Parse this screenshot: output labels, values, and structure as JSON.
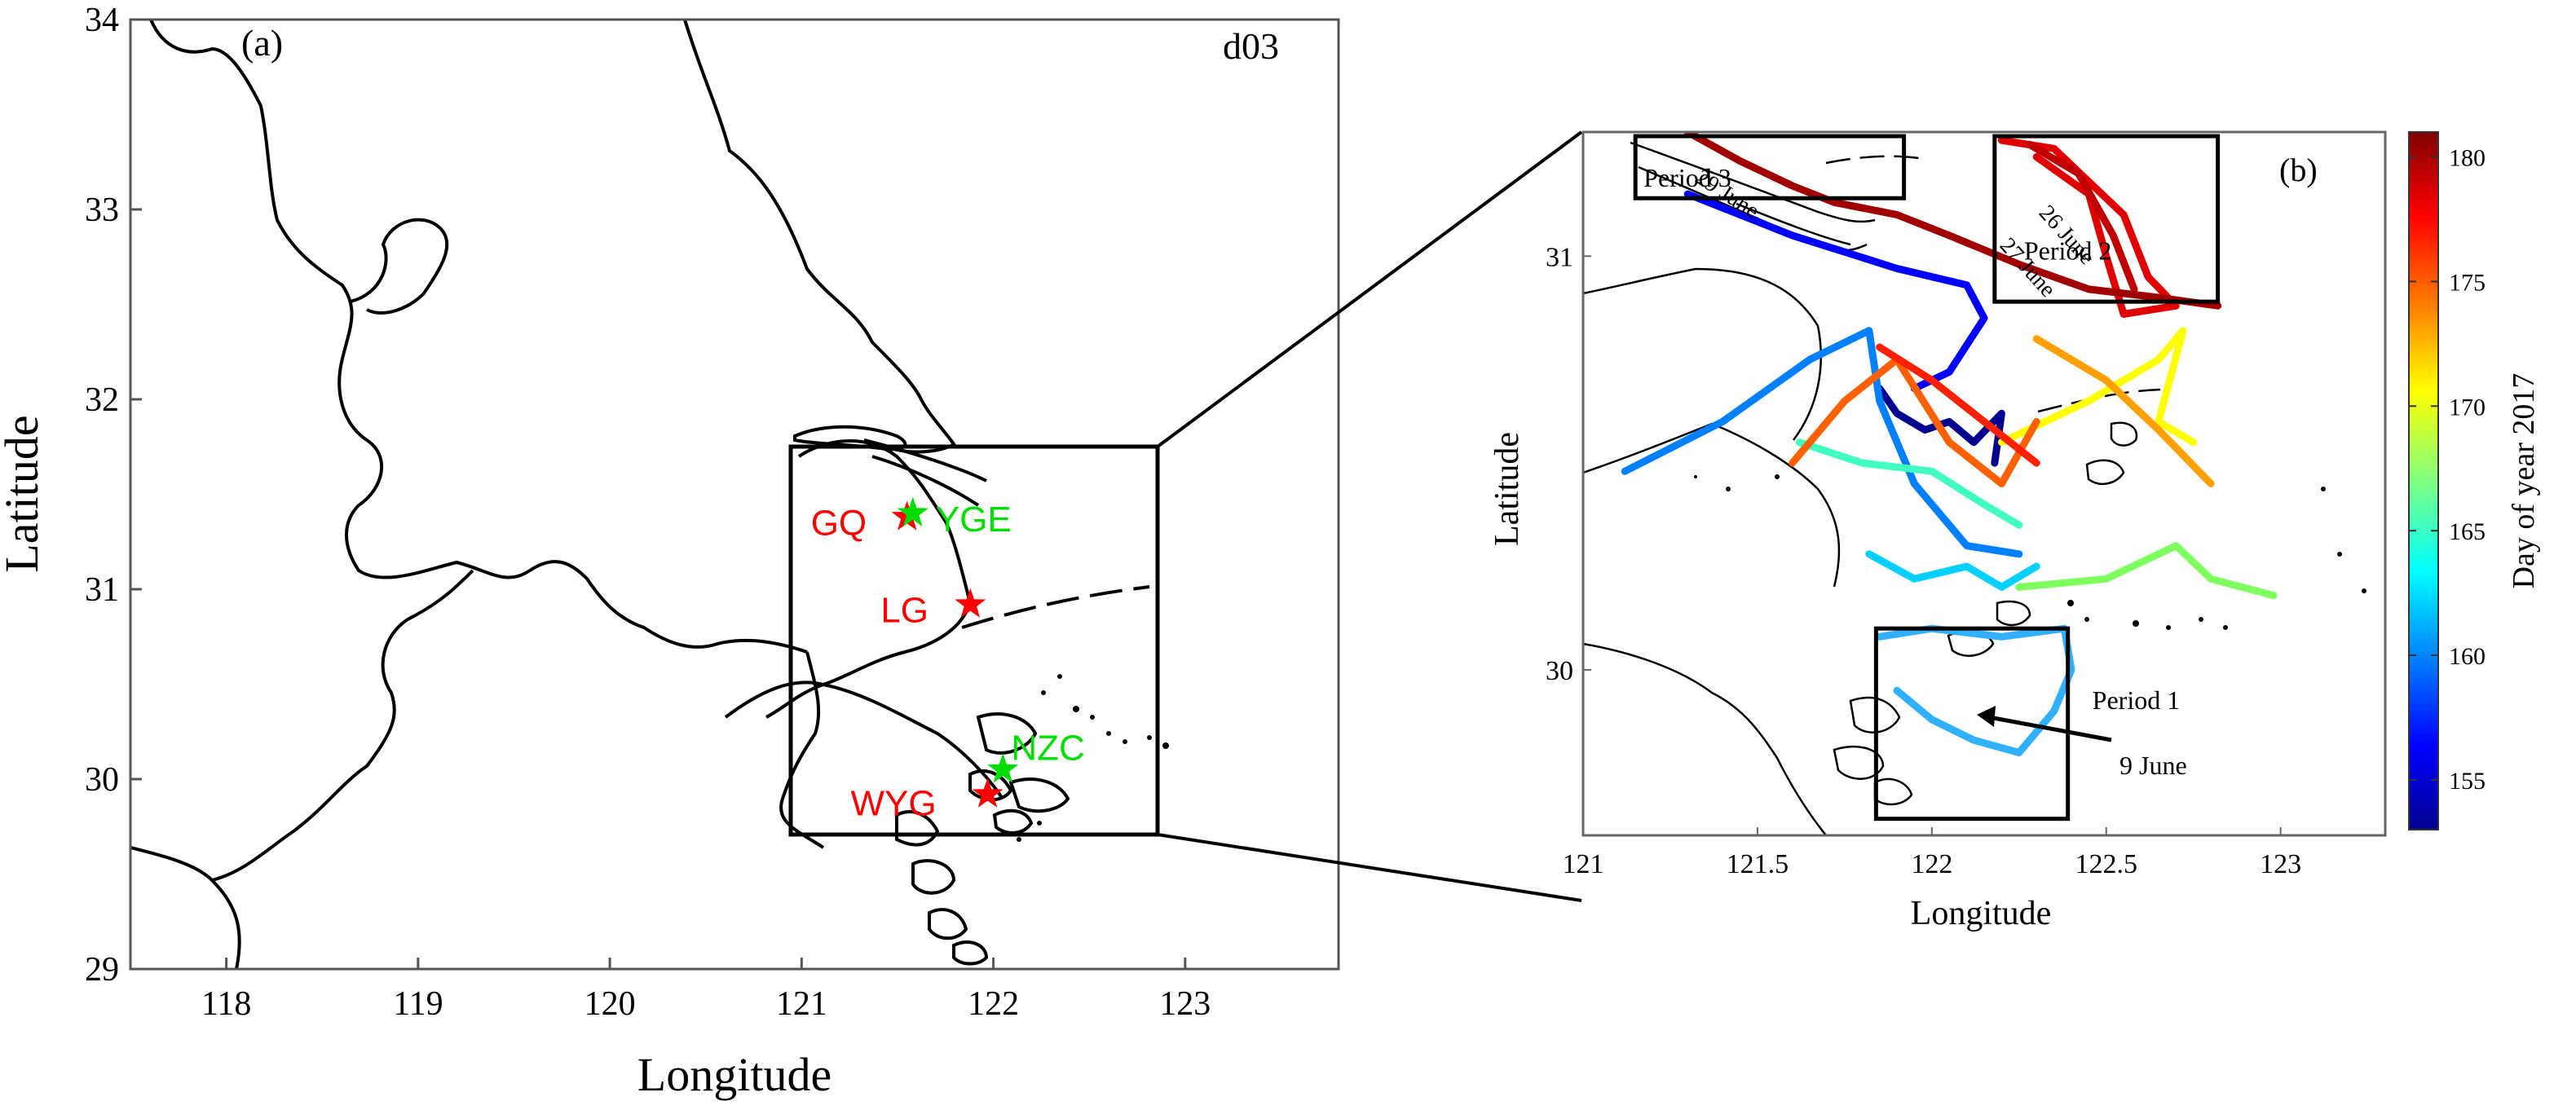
{
  "panel_a": {
    "label": "(a)",
    "domain_tag": "d03",
    "xlabel": "Longitude",
    "ylabel": "Latitude",
    "xlim": [
      117.5,
      123.8
    ],
    "ylim": [
      29,
      34
    ],
    "xticks": [
      "118",
      "119",
      "120",
      "121",
      "122",
      "123"
    ],
    "yticks": [
      "29",
      "30",
      "31",
      "32",
      "33",
      "34"
    ],
    "stations": [
      {
        "name": "GQ",
        "lon": 121.55,
        "lat": 31.38,
        "color": "#ff0000",
        "marker": "star"
      },
      {
        "name": "YGE",
        "lon": 121.58,
        "lat": 31.4,
        "color": "#00dd00",
        "marker": "star"
      },
      {
        "name": "LG",
        "lon": 121.88,
        "lat": 30.92,
        "color": "#ff0000",
        "marker": "star"
      },
      {
        "name": "NZC",
        "lon": 122.05,
        "lat": 30.05,
        "color": "#00dd00",
        "marker": "star"
      },
      {
        "name": "WYG",
        "lon": 121.97,
        "lat": 29.92,
        "color": "#ff0000",
        "marker": "star"
      }
    ],
    "zoom_box": {
      "lon": [
        120.95,
        122.85
      ],
      "lat": [
        29.7,
        31.75
      ]
    }
  },
  "panel_b": {
    "label": "(b)",
    "xlabel": "Longitude",
    "ylabel": "Latitude",
    "xlim": [
      121,
      123.3
    ],
    "ylim": [
      29.6,
      31.3
    ],
    "xticks": [
      "121",
      "121.5",
      "122",
      "122.5",
      "123"
    ],
    "yticks": [
      "30",
      "31"
    ],
    "period_boxes": [
      {
        "label": "Period 3",
        "lon": [
          121.15,
          121.92
        ],
        "lat": [
          31.14,
          31.29
        ]
      },
      {
        "label": "Period 2",
        "lon": [
          122.18,
          122.82
        ],
        "lat": [
          30.89,
          31.29
        ]
      },
      {
        "label": "Period 1",
        "lon": [
          121.84,
          122.39
        ],
        "lat": [
          29.64,
          30.1
        ]
      }
    ],
    "annotations": [
      "29 June",
      "26 June",
      "27 June",
      "9 June"
    ],
    "colorbar": {
      "label": "Day of year 2017",
      "ticks": [
        "155",
        "160",
        "165",
        "170",
        "175",
        "180"
      ],
      "range": [
        153,
        181
      ],
      "colors": [
        "#00008f",
        "#0000ff",
        "#0080ff",
        "#00ffff",
        "#80ff80",
        "#ffff00",
        "#ff8000",
        "#ff0000",
        "#800000"
      ]
    }
  },
  "chart_data": {
    "type": "scatter",
    "description_panels": [
      "(a)",
      "(b)"
    ],
    "stations": [
      {
        "name": "GQ",
        "lon": 121.55,
        "lat": 31.38
      },
      {
        "name": "YGE",
        "lon": 121.58,
        "lat": 31.4
      },
      {
        "name": "LG",
        "lon": 121.88,
        "lat": 30.92
      },
      {
        "name": "NZC",
        "lon": 122.05,
        "lat": 30.05
      },
      {
        "name": "WYG",
        "lon": 121.97,
        "lat": 29.92
      }
    ],
    "tracks": [
      {
        "day": 154,
        "color": "#00008f",
        "points": [
          [
            121.85,
            30.68
          ],
          [
            121.9,
            30.62
          ],
          [
            121.98,
            30.58
          ],
          [
            122.05,
            30.6
          ],
          [
            122.12,
            30.55
          ],
          [
            122.2,
            30.62
          ],
          [
            122.18,
            30.5
          ]
        ]
      },
      {
        "day": 155,
        "color": "#0000ff",
        "points": [
          [
            121.3,
            31.15
          ],
          [
            121.6,
            31.05
          ],
          [
            121.9,
            30.97
          ],
          [
            122.1,
            30.93
          ],
          [
            122.15,
            30.85
          ],
          [
            122.05,
            30.72
          ],
          [
            121.95,
            30.68
          ]
        ]
      },
      {
        "day": 158,
        "color": "#0080ff",
        "points": [
          [
            121.12,
            30.48
          ],
          [
            121.4,
            30.6
          ],
          [
            121.65,
            30.75
          ],
          [
            121.82,
            30.82
          ],
          [
            121.85,
            30.65
          ],
          [
            121.95,
            30.45
          ],
          [
            122.1,
            30.3
          ],
          [
            122.25,
            30.28
          ]
        ]
      },
      {
        "day": 160,
        "color": "#30b0ff",
        "points": [
          [
            121.85,
            30.08
          ],
          [
            122.0,
            30.1
          ],
          [
            122.2,
            30.08
          ],
          [
            122.38,
            30.1
          ],
          [
            122.4,
            30.0
          ],
          [
            122.35,
            29.9
          ],
          [
            122.25,
            29.8
          ],
          [
            122.12,
            29.83
          ],
          [
            122.0,
            29.88
          ],
          [
            121.9,
            29.95
          ]
        ]
      },
      {
        "day": 162,
        "color": "#00d0ff",
        "points": [
          [
            121.82,
            30.28
          ],
          [
            121.95,
            30.22
          ],
          [
            122.1,
            30.25
          ],
          [
            122.2,
            30.2
          ],
          [
            122.3,
            30.25
          ]
        ]
      },
      {
        "day": 165,
        "color": "#40ffc0",
        "points": [
          [
            121.62,
            30.55
          ],
          [
            121.8,
            30.5
          ],
          [
            122.0,
            30.48
          ],
          [
            122.15,
            30.4
          ],
          [
            122.25,
            30.35
          ]
        ]
      },
      {
        "day": 167,
        "color": "#80ff60",
        "points": [
          [
            122.25,
            30.2
          ],
          [
            122.5,
            30.22
          ],
          [
            122.7,
            30.3
          ],
          [
            122.8,
            30.22
          ],
          [
            122.98,
            30.18
          ]
        ]
      },
      {
        "day": 170,
        "color": "#ffff00",
        "points": [
          [
            122.2,
            30.55
          ],
          [
            122.45,
            30.65
          ],
          [
            122.65,
            30.75
          ],
          [
            122.72,
            30.82
          ],
          [
            122.65,
            30.6
          ],
          [
            122.75,
            30.55
          ]
        ]
      },
      {
        "day": 173,
        "color": "#ffa000",
        "points": [
          [
            122.3,
            30.8
          ],
          [
            122.5,
            30.7
          ],
          [
            122.65,
            30.58
          ],
          [
            122.8,
            30.45
          ]
        ]
      },
      {
        "day": 175,
        "color": "#ff6000",
        "points": [
          [
            121.6,
            30.5
          ],
          [
            121.75,
            30.65
          ],
          [
            121.9,
            30.75
          ],
          [
            122.05,
            30.55
          ],
          [
            122.2,
            30.45
          ],
          [
            122.3,
            30.6
          ]
        ]
      },
      {
        "day": 177,
        "color": "#ff2000",
        "points": [
          [
            121.85,
            30.78
          ],
          [
            122.0,
            30.7
          ],
          [
            122.15,
            30.6
          ],
          [
            122.3,
            30.5
          ]
        ]
      },
      {
        "day": 178,
        "color": "#e00000",
        "points": [
          [
            122.2,
            31.28
          ],
          [
            122.35,
            31.26
          ],
          [
            122.55,
            31.1
          ],
          [
            122.62,
            30.95
          ],
          [
            122.7,
            30.88
          ],
          [
            122.55,
            30.86
          ],
          [
            122.5,
            31.0
          ],
          [
            122.45,
            31.15
          ],
          [
            122.3,
            31.24
          ]
        ]
      },
      {
        "day": 179,
        "color": "#c00000",
        "points": [
          [
            122.28,
            31.27
          ],
          [
            122.42,
            31.2
          ],
          [
            122.52,
            31.05
          ],
          [
            122.58,
            30.92
          ]
        ]
      },
      {
        "day": 180,
        "color": "#a00000",
        "points": [
          [
            121.3,
            31.3
          ],
          [
            121.45,
            31.23
          ],
          [
            121.6,
            31.17
          ],
          [
            121.72,
            31.13
          ],
          [
            121.9,
            31.1
          ],
          [
            122.05,
            31.05
          ],
          [
            122.25,
            30.98
          ],
          [
            122.45,
            30.92
          ],
          [
            122.65,
            30.9
          ],
          [
            122.82,
            30.88
          ]
        ]
      }
    ]
  }
}
